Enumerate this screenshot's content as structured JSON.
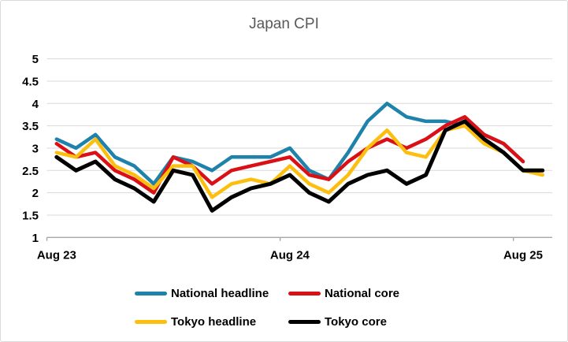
{
  "chart": {
    "background": "#ffffff",
    "border_color": "#d9d9d9"
  },
  "chart_data": {
    "type": "line",
    "title": "Japan CPI",
    "title_color": "#595959",
    "grid": true,
    "grid_color": "#d9d9d9",
    "axis_color": "#a6a6a6",
    "text_color": "#000000",
    "legend_position": "bottom",
    "ylim": [
      1,
      5
    ],
    "ytick_step": 0.5,
    "y_tick_labels": [
      "1",
      "1.5",
      "2",
      "2.5",
      "3",
      "3.5",
      "4",
      "4.5",
      "5"
    ],
    "categories": [
      "Aug-23",
      "Sep-23",
      "Oct-23",
      "Nov-23",
      "Dec-23",
      "Jan-24",
      "Feb-24",
      "Mar-24",
      "Apr-24",
      "May-24",
      "Jun-24",
      "Jul-24",
      "Aug-24",
      "Sep-24",
      "Oct-24",
      "Nov-24",
      "Dec-24",
      "Jan-25",
      "Feb-25",
      "Mar-25",
      "Apr-25",
      "May-25",
      "Jun-25",
      "Jul-25",
      "Aug-25",
      "Sep-25"
    ],
    "x_ticks": [
      {
        "index": 0,
        "boundary": 0,
        "label": "Aug 23"
      },
      {
        "index": 12,
        "boundary": 12,
        "label": "Aug 24"
      },
      {
        "index": 24,
        "boundary": 24,
        "label": "Aug 25"
      }
    ],
    "series": [
      {
        "id": "national-headline",
        "name": "National headline",
        "color": "#1e82aa",
        "values": [
          3.2,
          3.0,
          3.3,
          2.8,
          2.6,
          2.2,
          2.8,
          2.7,
          2.5,
          2.8,
          2.8,
          2.8,
          3.0,
          2.5,
          2.3,
          2.9,
          3.6,
          4.0,
          3.7,
          3.6,
          3.6,
          3.5,
          3.3,
          3.1,
          2.7,
          null
        ]
      },
      {
        "id": "national-core",
        "name": "National core",
        "color": "#da1016",
        "values": [
          3.1,
          2.8,
          2.9,
          2.5,
          2.3,
          2.0,
          2.8,
          2.6,
          2.2,
          2.5,
          2.6,
          2.7,
          2.8,
          2.4,
          2.3,
          2.7,
          3.0,
          3.2,
          3.0,
          3.2,
          3.5,
          3.7,
          3.3,
          3.1,
          2.7,
          null
        ]
      },
      {
        "id": "tokyo-headline",
        "name": "Tokyo headline",
        "color": "#fcbf10",
        "values": [
          2.9,
          2.8,
          3.2,
          2.6,
          2.4,
          2.1,
          2.6,
          2.6,
          1.9,
          2.2,
          2.3,
          2.2,
          2.6,
          2.2,
          2.0,
          2.4,
          3.0,
          3.4,
          2.9,
          2.8,
          3.4,
          3.5,
          3.1,
          2.9,
          2.5,
          2.4
        ]
      },
      {
        "id": "tokyo-core",
        "name": "Tokyo core",
        "color": "#000000",
        "values": [
          2.8,
          2.5,
          2.7,
          2.3,
          2.1,
          1.8,
          2.5,
          2.4,
          1.6,
          1.9,
          2.1,
          2.2,
          2.4,
          2.0,
          1.8,
          2.2,
          2.4,
          2.5,
          2.2,
          2.4,
          3.4,
          3.6,
          3.2,
          2.9,
          2.5,
          2.5
        ]
      }
    ]
  }
}
